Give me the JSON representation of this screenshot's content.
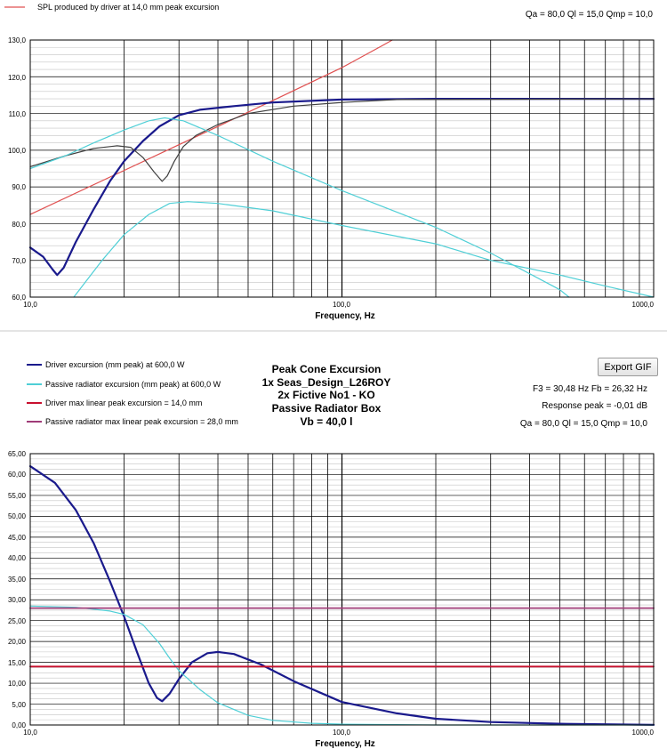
{
  "top_panel": {
    "legend": [
      "SPL produced by driver at 14,0 mm peak excursion"
    ],
    "params": "Qa = 80,0  Ql = 15,0  Qmp = 10,0"
  },
  "bottom_panel": {
    "legend": [
      "Driver excursion (mm peak) at 600,0 W",
      "Passive radiator excursion (mm peak) at 600,0 W",
      "Driver max linear peak excursion = 14,0 mm",
      "Passive radiator max linear peak excursion = 28,0 mm"
    ],
    "title_lines": [
      "Peak Cone Excursion",
      "1x Seas_Design_L26ROY",
      "2x Fictive No1 - KO",
      "Passive Radiator Box",
      "Vb = 40,0 l"
    ],
    "export_label": "Export GIF",
    "info_lines": [
      "F3 = 30,48 Hz  Fb = 26,32 Hz",
      "Response peak = -0,01 dB",
      "Qa = 80,0  Ql = 15,0  Qmp = 10,0"
    ]
  },
  "colors": {
    "navy": "#1a1a8c",
    "cyan": "#4fcfd6",
    "red": "#e05050",
    "dark_red": "#c8102e",
    "purple": "#a03c78",
    "gray": "#404040"
  },
  "chart_data": [
    {
      "type": "line",
      "xlabel": "Frequency, Hz",
      "xscale": "log",
      "xlim": [
        10,
        1000
      ],
      "ylim": [
        60,
        130
      ],
      "x_tick_labels": [
        "10,0",
        "100,0",
        "1000,0"
      ],
      "y_tick_labels": [
        "60,0",
        "70,0",
        "80,0",
        "90,0",
        "100,0",
        "110,0",
        "120,0",
        "130,0"
      ],
      "series": [
        {
          "name": "SPL produced by driver at 14,0 mm peak excursion",
          "color": "red",
          "points": [
            [
              10,
              82.5
            ],
            [
              30,
              101.5
            ],
            [
              60,
              113.5
            ],
            [
              100,
              122.5
            ],
            [
              133,
              128.2
            ],
            [
              145,
              130
            ]
          ]
        },
        {
          "color": "navy",
          "points": [
            [
              10,
              73.5
            ],
            [
              11,
              71
            ],
            [
              11.8,
              67.5
            ],
            [
              12.2,
              66
            ],
            [
              12.8,
              68
            ],
            [
              14,
              75
            ],
            [
              16,
              84
            ],
            [
              18,
              91.5
            ],
            [
              20,
              97
            ],
            [
              23,
              102.5
            ],
            [
              26,
              106.5
            ],
            [
              30,
              109.5
            ],
            [
              35,
              111
            ],
            [
              45,
              112
            ],
            [
              60,
              113
            ],
            [
              100,
              113.8
            ],
            [
              200,
              114
            ],
            [
              1000,
              114
            ]
          ]
        },
        {
          "color": "gray",
          "points": [
            [
              10,
              95.5
            ],
            [
              13,
              98.5
            ],
            [
              16,
              100.5
            ],
            [
              19,
              101.2
            ],
            [
              21,
              100.8
            ],
            [
              23,
              98
            ],
            [
              25,
              94
            ],
            [
              26.5,
              91.5
            ],
            [
              27.5,
              93
            ],
            [
              29,
              97
            ],
            [
              31,
              101
            ],
            [
              34,
              104
            ],
            [
              40,
              107
            ],
            [
              50,
              110
            ],
            [
              70,
              112
            ],
            [
              100,
              113
            ],
            [
              150,
              113.8
            ],
            [
              1000,
              114
            ]
          ]
        },
        {
          "color": "cyan",
          "points": [
            [
              10,
              95
            ],
            [
              13,
              98.5
            ],
            [
              16,
              102
            ],
            [
              20,
              105.5
            ],
            [
              24,
              108
            ],
            [
              27,
              108.8
            ],
            [
              31,
              108
            ],
            [
              40,
              104
            ],
            [
              60,
              97
            ],
            [
              100,
              89
            ],
            [
              200,
              79
            ],
            [
              300,
              72
            ],
            [
              500,
              62
            ],
            [
              535,
              60
            ]
          ]
        },
        {
          "color": "cyan",
          "points": [
            [
              13.8,
              60
            ],
            [
              15,
              64
            ],
            [
              17,
              70
            ],
            [
              20,
              77
            ],
            [
              24,
              82.5
            ],
            [
              28,
              85.5
            ],
            [
              32,
              86
            ],
            [
              40,
              85.5
            ],
            [
              60,
              83.5
            ],
            [
              100,
              79.5
            ],
            [
              200,
              74.5
            ],
            [
              300,
              70
            ],
            [
              500,
              66
            ],
            [
              700,
              63
            ],
            [
              1000,
              60
            ]
          ]
        }
      ]
    },
    {
      "type": "line",
      "xlabel": "Frequency, Hz",
      "xscale": "log",
      "xlim": [
        10,
        1000
      ],
      "ylim": [
        0,
        65
      ],
      "x_tick_labels": [
        "10,0",
        "100,0",
        "1000,0"
      ],
      "y_tick_labels": [
        "0,00",
        "5,00",
        "10,00",
        "15,00",
        "20,00",
        "25,00",
        "30,00",
        "35,00",
        "40,00",
        "45,00",
        "50,00",
        "55,00",
        "60,00",
        "65,00"
      ],
      "series": [
        {
          "name": "Driver excursion (mm peak) at 600,0 W",
          "color": "navy",
          "points": [
            [
              10,
              62
            ],
            [
              12,
              58
            ],
            [
              14,
              51.5
            ],
            [
              16,
              43.5
            ],
            [
              18,
              34.5
            ],
            [
              20,
              26
            ],
            [
              22,
              17.5
            ],
            [
              24,
              10
            ],
            [
              25.5,
              6.5
            ],
            [
              26.5,
              5.7
            ],
            [
              28,
              7.5
            ],
            [
              30,
              11
            ],
            [
              33,
              15
            ],
            [
              37,
              17.2
            ],
            [
              40,
              17.5
            ],
            [
              45,
              17
            ],
            [
              55,
              14.5
            ],
            [
              70,
              10.5
            ],
            [
              100,
              5.5
            ],
            [
              150,
              2.8
            ],
            [
              200,
              1.5
            ],
            [
              300,
              0.7
            ],
            [
              500,
              0.3
            ],
            [
              1000,
              0.05
            ]
          ]
        },
        {
          "name": "Passive radiator excursion (mm peak) at 600,0 W",
          "color": "cyan",
          "points": [
            [
              10,
              28.5
            ],
            [
              14,
              28.2
            ],
            [
              18,
              27.3
            ],
            [
              20,
              26.5
            ],
            [
              23,
              24
            ],
            [
              26,
              19.5
            ],
            [
              28,
              16
            ],
            [
              30,
              13
            ],
            [
              35,
              8.5
            ],
            [
              40,
              5.3
            ],
            [
              50,
              2.3
            ],
            [
              60,
              1.1
            ],
            [
              80,
              0.4
            ],
            [
              100,
              0.2
            ],
            [
              200,
              0
            ],
            [
              1000,
              0
            ]
          ]
        },
        {
          "name": "Driver max linear peak excursion = 14,0 mm",
          "color": "dark_red",
          "points": [
            [
              10,
              14
            ],
            [
              1000,
              14
            ]
          ]
        },
        {
          "name": "Passive radiator max linear peak excursion = 28,0 mm",
          "color": "purple",
          "points": [
            [
              10,
              28
            ],
            [
              1000,
              28
            ]
          ]
        }
      ]
    }
  ]
}
